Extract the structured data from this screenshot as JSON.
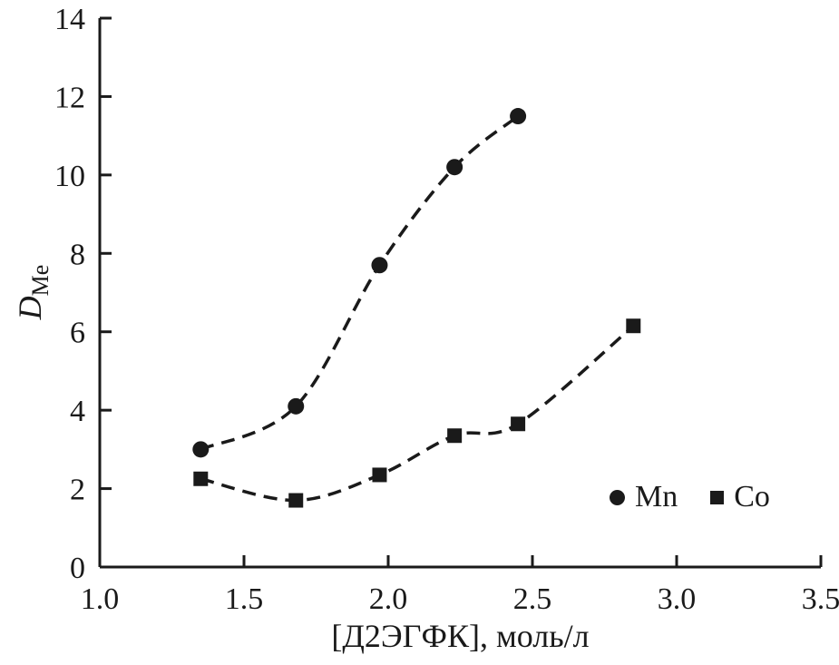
{
  "chart_data": {
    "type": "scatter",
    "title": "",
    "xlabel": "[Д2ЭГФК], моль/л",
    "ylabel_main": "D",
    "ylabel_sub": "Me",
    "xlim": [
      1.0,
      3.5
    ],
    "ylim": [
      0,
      14
    ],
    "xticks": [
      1.0,
      1.5,
      2.0,
      2.5,
      3.0,
      3.5
    ],
    "xtick_labels": [
      "1.0",
      "1.5",
      "2.0",
      "2.5",
      "3.0",
      "3.5"
    ],
    "yticks": [
      0,
      2,
      4,
      6,
      8,
      10,
      12,
      14
    ],
    "ytick_labels": [
      "0",
      "2",
      "4",
      "6",
      "8",
      "10",
      "12",
      "14"
    ],
    "grid": false,
    "line_style": "dashed",
    "color": "#1a1a1a",
    "series": [
      {
        "name": "Mn",
        "marker": "circle",
        "x": [
          1.35,
          1.68,
          1.97,
          2.23,
          2.45
        ],
        "y": [
          3.0,
          4.1,
          7.7,
          10.2,
          11.5
        ]
      },
      {
        "name": "Co",
        "marker": "square",
        "x": [
          1.35,
          1.68,
          1.97,
          2.23,
          2.45,
          2.85
        ],
        "y": [
          2.25,
          1.7,
          2.35,
          3.35,
          3.65,
          6.15
        ]
      }
    ],
    "legend": [
      {
        "label": "Mn",
        "marker": "circle"
      },
      {
        "label": "Co",
        "marker": "square"
      }
    ],
    "legend_position": "inside-bottom-right"
  }
}
